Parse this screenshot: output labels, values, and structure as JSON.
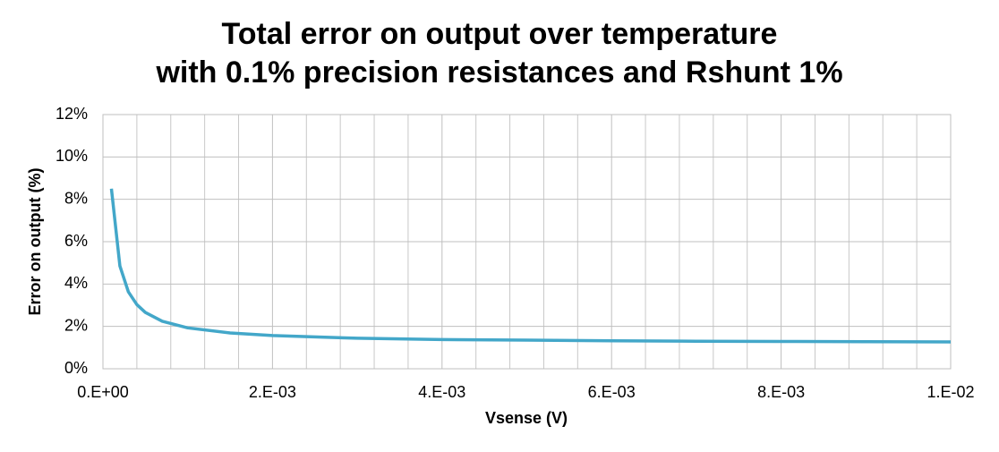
{
  "chart_data": {
    "type": "line",
    "title": [
      "Total error on output over temperature",
      "with 0.1% precision resistances and Rshunt 1%"
    ],
    "x_label": "Vsense (V)",
    "y_label": "Error on output (%)",
    "x": [
      0.0001,
      0.0002,
      0.0003,
      0.0004,
      0.0005,
      0.0007,
      0.001,
      0.0015,
      0.002,
      0.003,
      0.004,
      0.005,
      0.006,
      0.007,
      0.008,
      0.009,
      0.01
    ],
    "series": [
      {
        "color": "#43a7c9",
        "values": [
          8.5,
          4.85,
          3.63,
          3.03,
          2.66,
          2.24,
          1.93,
          1.69,
          1.57,
          1.44,
          1.38,
          1.35,
          1.32,
          1.3,
          1.29,
          1.28,
          1.27
        ]
      }
    ],
    "xlim": [
      0,
      0.01
    ],
    "xticks": [
      {
        "value": 0,
        "label": "0.E+00"
      },
      {
        "value": 0.002,
        "label": "2.E-03"
      },
      {
        "value": 0.004,
        "label": "4.E-03"
      },
      {
        "value": 0.006,
        "label": "6.E-03"
      },
      {
        "value": 0.008,
        "label": "8.E-03"
      },
      {
        "value": 0.01,
        "label": "1.E-02"
      }
    ],
    "ylim": [
      0,
      12
    ],
    "yticks": [
      {
        "value": 0,
        "label": "0%"
      },
      {
        "value": 2,
        "label": "2%"
      },
      {
        "value": 4,
        "label": "4%"
      },
      {
        "value": 6,
        "label": "6%"
      },
      {
        "value": 8,
        "label": "8%"
      },
      {
        "value": 10,
        "label": "10%"
      },
      {
        "value": 12,
        "label": "12%"
      }
    ],
    "grid": true
  }
}
